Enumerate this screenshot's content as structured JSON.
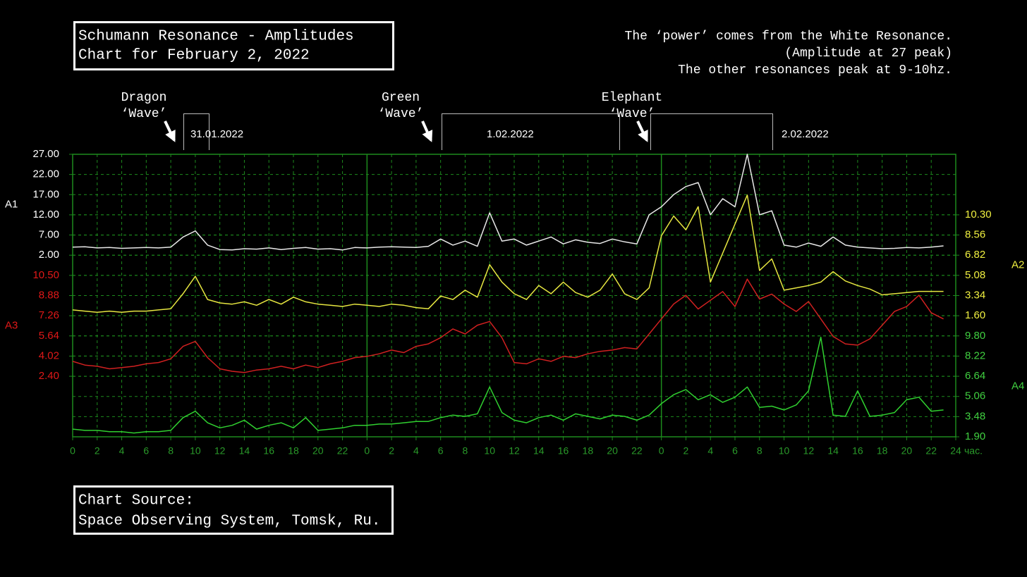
{
  "chart_data": {
    "type": "line",
    "title": "Schumann Resonance - Amplitudes",
    "subtitle": "Chart for February 2, 2022",
    "notes": [
      "The ‘power’ comes from the White Resonance.",
      "(Amplitude at 27 peak)",
      "The other resonances peak at 9-10hz."
    ],
    "annotations": [
      [
        "Dragon",
        "‘Wave’"
      ],
      [
        "Green",
        "‘Wave’"
      ],
      [
        "Elephant",
        "‘Wave’"
      ]
    ],
    "date_labels": [
      "31.01.2022",
      "1.02.2022",
      "2.02.2022"
    ],
    "source": [
      "Chart Source:",
      "Space Observing System, Tomsk, Ru."
    ],
    "x_label": "час.",
    "xlim": [
      0,
      72
    ],
    "xticks": [
      0,
      2,
      4,
      6,
      8,
      10,
      12,
      14,
      16,
      18,
      20,
      22,
      {
        "value": 24,
        "label": "0"
      },
      {
        "value": 26,
        "label": "2"
      },
      {
        "value": 28,
        "label": "4"
      },
      {
        "value": 30,
        "label": "6"
      },
      {
        "value": 32,
        "label": "8"
      },
      {
        "value": 34,
        "label": "10"
      },
      {
        "value": 36,
        "label": "12"
      },
      {
        "value": 38,
        "label": "14"
      },
      {
        "value": 40,
        "label": "16"
      },
      {
        "value": 42,
        "label": "18"
      },
      {
        "value": 44,
        "label": "20"
      },
      {
        "value": 46,
        "label": "22"
      },
      {
        "value": 48,
        "label": "0"
      },
      {
        "value": 50,
        "label": "2"
      },
      {
        "value": 52,
        "label": "4"
      },
      {
        "value": 54,
        "label": "6"
      },
      {
        "value": 56,
        "label": "8"
      },
      {
        "value": 58,
        "label": "10"
      },
      {
        "value": 60,
        "label": "12"
      },
      {
        "value": 62,
        "label": "14"
      },
      {
        "value": 64,
        "label": "16"
      },
      {
        "value": 66,
        "label": "18"
      },
      {
        "value": 68,
        "label": "20"
      },
      {
        "value": 70,
        "label": "22"
      },
      {
        "value": 72,
        "label": "24"
      }
    ],
    "grid": true,
    "axes": [
      {
        "label": "A1",
        "side": "left",
        "color": "#ffffff",
        "ylim": [
          -43,
          27
        ],
        "yticks": [
          {
            "value": 27,
            "label": "27.00"
          },
          {
            "value": 22,
            "label": "22.00"
          },
          {
            "value": 17,
            "label": "17.00"
          },
          {
            "value": 12,
            "label": "12.00"
          },
          {
            "value": 7,
            "label": "7.00"
          },
          {
            "value": 2,
            "label": "2.00"
          }
        ]
      },
      {
        "label": "A2",
        "side": "right",
        "color": "#f0f040",
        "ylim": [
          -8.84,
          15.52
        ],
        "yticks": [
          {
            "value": 10.3,
            "label": "10.30"
          },
          8.56,
          6.82,
          5.08,
          3.34,
          {
            "value": 1.6,
            "label": "1.60"
          }
        ]
      },
      {
        "label": "A3",
        "side": "left",
        "color": "#e01818",
        "ylim": [
          -2.46,
          20.22
        ],
        "yticks": [
          {
            "value": 10.5,
            "label": "10.50"
          },
          8.88,
          7.26,
          5.64,
          4.02,
          {
            "value": 2.4,
            "label": "2.40"
          }
        ]
      },
      {
        "label": "A4",
        "side": "right",
        "color": "#40d040",
        "ylim": [
          1.9,
          24.02
        ],
        "yticks": [
          {
            "value": 9.8,
            "label": "9.80"
          },
          8.22,
          6.64,
          5.06,
          3.48,
          {
            "value": 1.9,
            "label": "1.90"
          }
        ]
      }
    ],
    "x": [
      0,
      1,
      2,
      3,
      4,
      5,
      6,
      7,
      8,
      9,
      10,
      11,
      12,
      13,
      14,
      15,
      16,
      17,
      18,
      19,
      20,
      21,
      22,
      23,
      24,
      25,
      26,
      27,
      28,
      29,
      30,
      31,
      32,
      33,
      34,
      35,
      36,
      37,
      38,
      39,
      40,
      41,
      42,
      43,
      44,
      45,
      46,
      47,
      48,
      49,
      50,
      51,
      52,
      53,
      54,
      55,
      56,
      57,
      58,
      59,
      60,
      61,
      62,
      63,
      64,
      65,
      66,
      67,
      68,
      69,
      70,
      71
    ],
    "series": [
      {
        "color": "#e8e8e8",
        "axis": 0,
        "values": [
          4.0,
          4.1,
          3.8,
          3.9,
          3.7,
          3.8,
          3.9,
          3.8,
          4.0,
          6.5,
          8.0,
          4.5,
          3.4,
          3.3,
          3.6,
          3.5,
          3.8,
          3.4,
          3.7,
          3.9,
          3.5,
          3.6,
          3.3,
          3.9,
          3.8,
          4.0,
          4.1,
          4.0,
          3.9,
          4.2,
          6.0,
          4.5,
          5.5,
          4.2,
          12.5,
          5.5,
          6.0,
          4.5,
          5.5,
          6.5,
          4.8,
          5.8,
          5.2,
          4.9,
          6.0,
          5.3,
          4.8,
          12.0,
          14.0,
          17.0,
          19.0,
          20.0,
          12.0,
          16.0,
          14.0,
          27.0,
          12.0,
          13.0,
          4.5,
          4.0,
          5.0,
          4.2,
          6.5,
          4.5,
          4.0,
          3.8,
          3.6,
          3.7,
          3.9,
          3.8,
          4.0,
          4.3
        ]
      },
      {
        "color": "#e6e640",
        "axis": 1,
        "values": [
          2.1,
          2.0,
          1.9,
          2.0,
          1.9,
          2.0,
          2.0,
          2.1,
          2.2,
          3.5,
          5.0,
          3.0,
          2.7,
          2.6,
          2.8,
          2.5,
          3.0,
          2.6,
          3.2,
          2.8,
          2.6,
          2.5,
          2.4,
          2.6,
          2.5,
          2.4,
          2.6,
          2.5,
          2.3,
          2.2,
          3.3,
          3.0,
          3.8,
          3.2,
          6.0,
          4.5,
          3.5,
          3.0,
          4.2,
          3.5,
          4.5,
          3.6,
          3.2,
          3.8,
          5.2,
          3.5,
          3.0,
          4.0,
          8.5,
          10.2,
          9.0,
          11.0,
          4.5,
          7.0,
          9.5,
          12.0,
          5.5,
          6.5,
          3.8,
          4.0,
          4.2,
          4.5,
          5.4,
          4.6,
          4.2,
          3.9,
          3.4,
          3.5,
          3.6,
          3.7,
          3.7,
          3.7
        ]
      },
      {
        "color": "#d02020",
        "axis": 2,
        "values": [
          3.6,
          3.3,
          3.2,
          3.0,
          3.1,
          3.2,
          3.4,
          3.5,
          3.8,
          4.8,
          5.2,
          3.9,
          3.0,
          2.8,
          2.7,
          2.9,
          3.0,
          3.2,
          3.0,
          3.3,
          3.1,
          3.4,
          3.6,
          3.9,
          4.0,
          4.2,
          4.5,
          4.3,
          4.8,
          5.0,
          5.5,
          6.2,
          5.8,
          6.5,
          6.8,
          5.5,
          3.5,
          3.4,
          3.8,
          3.6,
          4.0,
          3.9,
          4.2,
          4.4,
          4.5,
          4.7,
          4.6,
          5.8,
          7.0,
          8.2,
          8.9,
          7.8,
          8.5,
          9.2,
          8.0,
          10.2,
          8.6,
          9.0,
          8.2,
          7.6,
          8.4,
          7.0,
          5.6,
          5.0,
          4.9,
          5.4,
          6.5,
          7.6,
          8.0,
          8.9,
          7.5,
          7.0
        ]
      },
      {
        "color": "#30d030",
        "axis": 3,
        "values": [
          2.5,
          2.4,
          2.4,
          2.3,
          2.3,
          2.2,
          2.3,
          2.3,
          2.4,
          3.4,
          3.9,
          3.0,
          2.6,
          2.8,
          3.2,
          2.5,
          2.8,
          3.0,
          2.6,
          3.4,
          2.4,
          2.5,
          2.6,
          2.8,
          2.8,
          2.9,
          2.9,
          3.0,
          3.1,
          3.1,
          3.4,
          3.6,
          3.5,
          3.7,
          5.8,
          3.8,
          3.2,
          3.0,
          3.4,
          3.6,
          3.2,
          3.7,
          3.5,
          3.3,
          3.6,
          3.5,
          3.2,
          3.6,
          4.5,
          5.2,
          5.6,
          4.8,
          5.2,
          4.6,
          5.0,
          5.8,
          4.2,
          4.3,
          4.0,
          4.4,
          5.5,
          9.7,
          3.6,
          3.5,
          5.5,
          3.5,
          3.6,
          3.8,
          4.8,
          5.0,
          3.9,
          4.0
        ]
      }
    ]
  }
}
